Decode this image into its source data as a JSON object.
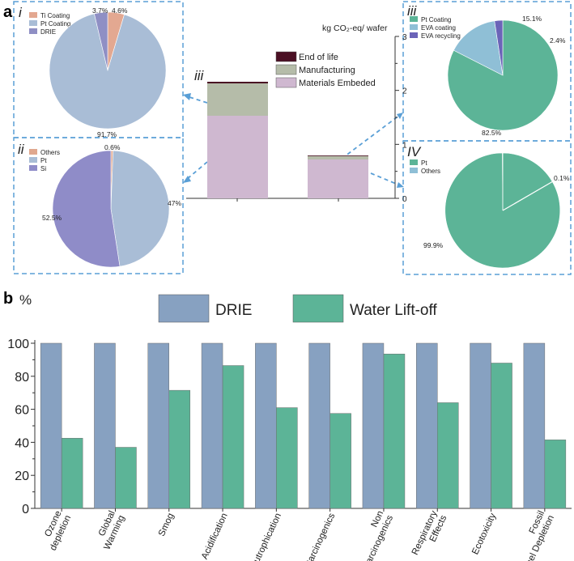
{
  "panel_labels": {
    "a": "a",
    "b": "b"
  },
  "colors": {
    "ti": "#e3a891",
    "pt_coating_left": "#a9bdd6",
    "drie_slice": "#8f8fc4",
    "others_ii": "#e0a88e",
    "pt_ii": "#a9bdd6",
    "si": "#8f8cc8",
    "green": "#5cb497",
    "light_blue": "#8fbfd6",
    "purple": "#6b64b8",
    "end_of_life": "#4a0f23",
    "manufacturing": "#b5bca9",
    "materials": "#cfb8d0",
    "drie_bar": "#87a1c1",
    "water_bar": "#5cb497",
    "dash": "#5a9fd6"
  },
  "chart_data": [
    {
      "id": "pie-i",
      "type": "pie",
      "roman": "i",
      "legend": [
        "Ti Coating",
        "Pt Coating",
        "DRIE"
      ],
      "values": [
        4.6,
        91.7,
        3.7
      ],
      "labels": [
        "4.6%",
        "91.7%",
        "3.7%"
      ]
    },
    {
      "id": "pie-ii",
      "type": "pie",
      "roman": "ii",
      "legend": [
        "Others",
        "Pt",
        "Si"
      ],
      "values": [
        0.6,
        47,
        52.5
      ],
      "labels": [
        "0.6%",
        "47%",
        "52.5%"
      ]
    },
    {
      "id": "stacked-bar",
      "type": "bar",
      "roman": "iii",
      "ylabel": "kg CO₂-eq/ wafer",
      "ylim": [
        0,
        3
      ],
      "yticks": [
        "0",
        "1",
        "2",
        "3"
      ],
      "legend": [
        "End of life",
        "Manufacturing",
        "Materials Embeded"
      ],
      "series": [
        {
          "name": "Materials Embeded",
          "values": [
            1.53,
            0.72
          ]
        },
        {
          "name": "Manufacturing",
          "values": [
            0.6,
            0.07
          ]
        },
        {
          "name": "End of life",
          "values": [
            0.03,
            0.005
          ]
        }
      ]
    },
    {
      "id": "pie-iii",
      "type": "pie",
      "roman": "iii",
      "legend": [
        "Pt Coating",
        "EVA coating",
        "EVA recycling"
      ],
      "values": [
        82.5,
        15.1,
        2.4
      ],
      "labels": [
        "82.5%",
        "15.1%",
        "2.4%"
      ]
    },
    {
      "id": "pie-iv",
      "type": "pie",
      "roman": "IV",
      "legend": [
        "Pt",
        "Others"
      ],
      "values": [
        99.9,
        0.1
      ],
      "labels": [
        "99.9%",
        "0.1%"
      ]
    },
    {
      "id": "bar-b",
      "type": "bar",
      "ylabel": "%",
      "ylim": [
        0,
        100
      ],
      "yticks": [
        "0",
        "20",
        "40",
        "60",
        "80",
        "100"
      ],
      "categories": [
        "Ozone depletion",
        "Global Warming",
        "Smog",
        "Acidification",
        "Eutrophication",
        "Carcinogenics",
        "Non Carcinogenics",
        "Respiratory Effects",
        "Ecotoxicity",
        "Fossil fuel Depletion"
      ],
      "series": [
        {
          "name": "DRIE",
          "values": [
            100,
            100,
            100,
            100,
            100,
            100,
            100,
            100,
            100,
            100
          ]
        },
        {
          "name": "Water Lift-off",
          "values": [
            42.5,
            37,
            71.5,
            86.5,
            61,
            57.5,
            93.5,
            64,
            88,
            41.5
          ]
        }
      ]
    }
  ]
}
